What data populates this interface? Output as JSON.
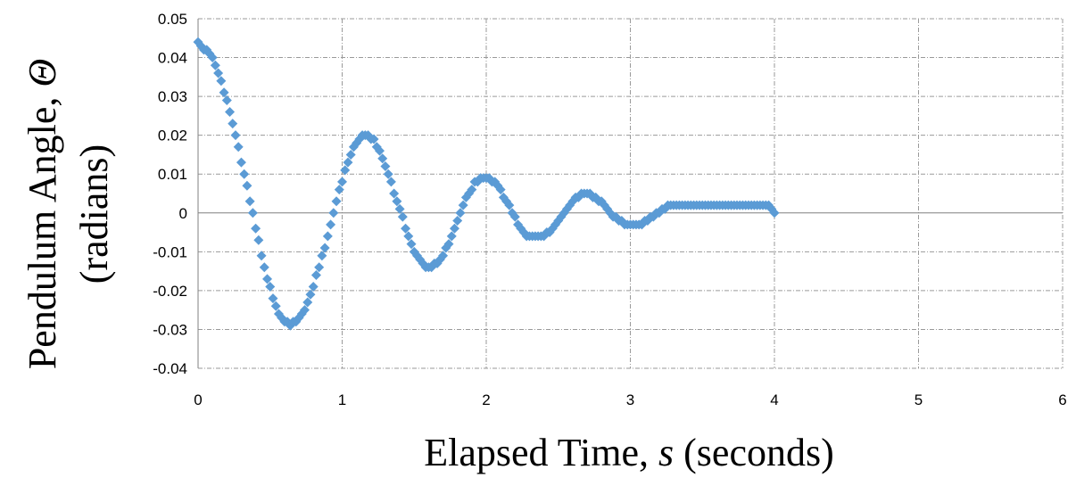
{
  "chart_data": {
    "type": "scatter",
    "xlabel": "Elapsed Time, s (seconds)",
    "xlabel_parts": {
      "before": "Elapsed Time, ",
      "var": "s",
      "after": " (seconds)"
    },
    "ylabel": "Pendulum Angle, Θ (radians)",
    "ylabel_parts": {
      "line1_before": "Pendulum Angle, ",
      "line1_var": "Θ",
      "line2": "(radians)"
    },
    "xlim": [
      0,
      6
    ],
    "ylim": [
      -0.04,
      0.05
    ],
    "x_ticks": [
      "0",
      "1",
      "2",
      "3",
      "4",
      "5",
      "6"
    ],
    "y_ticks": [
      "0.05",
      "0.04",
      "0.03",
      "0.02",
      "0.01",
      "0",
      "-0.01",
      "-0.02",
      "-0.03",
      "-0.04"
    ],
    "grid": true,
    "marker": "diamond",
    "marker_color": "#5b9bd5",
    "series": [
      {
        "points": [
          [
            0.0,
            0.044
          ],
          [
            0.02,
            0.043
          ],
          [
            0.04,
            0.042
          ],
          [
            0.06,
            0.042
          ],
          [
            0.08,
            0.041
          ],
          [
            0.1,
            0.04
          ],
          [
            0.12,
            0.038
          ],
          [
            0.14,
            0.036
          ],
          [
            0.16,
            0.034
          ],
          [
            0.18,
            0.031
          ],
          [
            0.2,
            0.029
          ],
          [
            0.22,
            0.026
          ],
          [
            0.24,
            0.023
          ],
          [
            0.26,
            0.02
          ],
          [
            0.28,
            0.017
          ],
          [
            0.3,
            0.013
          ],
          [
            0.32,
            0.01
          ],
          [
            0.34,
            0.007
          ],
          [
            0.36,
            0.003
          ],
          [
            0.38,
            0.0
          ],
          [
            0.4,
            -0.004
          ],
          [
            0.42,
            -0.007
          ],
          [
            0.44,
            -0.011
          ],
          [
            0.46,
            -0.014
          ],
          [
            0.48,
            -0.017
          ],
          [
            0.5,
            -0.019
          ],
          [
            0.52,
            -0.022
          ],
          [
            0.54,
            -0.024
          ],
          [
            0.56,
            -0.026
          ],
          [
            0.58,
            -0.027
          ],
          [
            0.6,
            -0.028
          ],
          [
            0.62,
            -0.028
          ],
          [
            0.64,
            -0.029
          ],
          [
            0.66,
            -0.028
          ],
          [
            0.68,
            -0.028
          ],
          [
            0.7,
            -0.027
          ],
          [
            0.72,
            -0.026
          ],
          [
            0.74,
            -0.025
          ],
          [
            0.76,
            -0.023
          ],
          [
            0.78,
            -0.021
          ],
          [
            0.8,
            -0.019
          ],
          [
            0.82,
            -0.016
          ],
          [
            0.84,
            -0.014
          ],
          [
            0.86,
            -0.011
          ],
          [
            0.88,
            -0.009
          ],
          [
            0.9,
            -0.006
          ],
          [
            0.92,
            -0.003
          ],
          [
            0.94,
            0.0
          ],
          [
            0.96,
            0.003
          ],
          [
            0.98,
            0.006
          ],
          [
            1.0,
            0.008
          ],
          [
            1.02,
            0.011
          ],
          [
            1.04,
            0.013
          ],
          [
            1.06,
            0.015
          ],
          [
            1.08,
            0.017
          ],
          [
            1.1,
            0.018
          ],
          [
            1.12,
            0.019
          ],
          [
            1.14,
            0.02
          ],
          [
            1.16,
            0.02
          ],
          [
            1.18,
            0.02
          ],
          [
            1.2,
            0.019
          ],
          [
            1.22,
            0.019
          ],
          [
            1.24,
            0.017
          ],
          [
            1.26,
            0.016
          ],
          [
            1.28,
            0.014
          ],
          [
            1.3,
            0.012
          ],
          [
            1.32,
            0.01
          ],
          [
            1.34,
            0.008
          ],
          [
            1.36,
            0.005
          ],
          [
            1.38,
            0.003
          ],
          [
            1.4,
            0.001
          ],
          [
            1.42,
            -0.001
          ],
          [
            1.44,
            -0.004
          ],
          [
            1.46,
            -0.006
          ],
          [
            1.48,
            -0.008
          ],
          [
            1.5,
            -0.01
          ],
          [
            1.52,
            -0.011
          ],
          [
            1.54,
            -0.012
          ],
          [
            1.56,
            -0.013
          ],
          [
            1.58,
            -0.014
          ],
          [
            1.6,
            -0.014
          ],
          [
            1.62,
            -0.014
          ],
          [
            1.64,
            -0.013
          ],
          [
            1.66,
            -0.013
          ],
          [
            1.68,
            -0.012
          ],
          [
            1.7,
            -0.011
          ],
          [
            1.72,
            -0.009
          ],
          [
            1.74,
            -0.008
          ],
          [
            1.76,
            -0.006
          ],
          [
            1.78,
            -0.004
          ],
          [
            1.8,
            -0.002
          ],
          [
            1.82,
            0.0
          ],
          [
            1.84,
            0.002
          ],
          [
            1.86,
            0.004
          ],
          [
            1.88,
            0.005
          ],
          [
            1.9,
            0.006
          ],
          [
            1.92,
            0.008
          ],
          [
            1.94,
            0.008
          ],
          [
            1.96,
            0.009
          ],
          [
            1.98,
            0.009
          ],
          [
            2.0,
            0.009
          ],
          [
            2.02,
            0.009
          ],
          [
            2.04,
            0.008
          ],
          [
            2.06,
            0.008
          ],
          [
            2.08,
            0.007
          ],
          [
            2.1,
            0.006
          ],
          [
            2.12,
            0.004
          ],
          [
            2.14,
            0.003
          ],
          [
            2.16,
            0.002
          ],
          [
            2.18,
            0.0
          ],
          [
            2.2,
            -0.001
          ],
          [
            2.22,
            -0.003
          ],
          [
            2.24,
            -0.004
          ],
          [
            2.26,
            -0.005
          ],
          [
            2.28,
            -0.006
          ],
          [
            2.3,
            -0.006
          ],
          [
            2.32,
            -0.006
          ],
          [
            2.34,
            -0.006
          ],
          [
            2.36,
            -0.006
          ],
          [
            2.38,
            -0.006
          ],
          [
            2.4,
            -0.006
          ],
          [
            2.42,
            -0.005
          ],
          [
            2.44,
            -0.005
          ],
          [
            2.46,
            -0.004
          ],
          [
            2.48,
            -0.003
          ],
          [
            2.5,
            -0.002
          ],
          [
            2.52,
            -0.001
          ],
          [
            2.54,
            0.0
          ],
          [
            2.56,
            0.001
          ],
          [
            2.58,
            0.002
          ],
          [
            2.6,
            0.003
          ],
          [
            2.62,
            0.004
          ],
          [
            2.64,
            0.004
          ],
          [
            2.66,
            0.005
          ],
          [
            2.68,
            0.005
          ],
          [
            2.7,
            0.005
          ],
          [
            2.72,
            0.005
          ],
          [
            2.74,
            0.004
          ],
          [
            2.76,
            0.004
          ],
          [
            2.78,
            0.003
          ],
          [
            2.8,
            0.003
          ],
          [
            2.82,
            0.002
          ],
          [
            2.84,
            0.001
          ],
          [
            2.86,
            0.0
          ],
          [
            2.88,
            -0.001
          ],
          [
            2.9,
            -0.001
          ],
          [
            2.92,
            -0.002
          ],
          [
            2.94,
            -0.002
          ],
          [
            2.96,
            -0.003
          ],
          [
            2.98,
            -0.003
          ],
          [
            3.0,
            -0.003
          ],
          [
            3.02,
            -0.003
          ],
          [
            3.04,
            -0.003
          ],
          [
            3.06,
            -0.003
          ],
          [
            3.08,
            -0.003
          ],
          [
            3.1,
            -0.002
          ],
          [
            3.12,
            -0.002
          ],
          [
            3.14,
            -0.001
          ],
          [
            3.16,
            -0.001
          ],
          [
            3.18,
            0.0
          ],
          [
            3.2,
            0.0
          ],
          [
            3.22,
            0.001
          ],
          [
            3.24,
            0.001
          ],
          [
            3.26,
            0.002
          ],
          [
            3.28,
            0.002
          ],
          [
            3.3,
            0.002
          ],
          [
            3.32,
            0.002
          ],
          [
            3.34,
            0.002
          ],
          [
            3.36,
            0.002
          ],
          [
            3.38,
            0.002
          ],
          [
            3.4,
            0.002
          ],
          [
            3.42,
            0.002
          ],
          [
            3.44,
            0.002
          ],
          [
            3.46,
            0.002
          ],
          [
            3.48,
            0.002
          ],
          [
            3.5,
            0.002
          ],
          [
            3.52,
            0.002
          ],
          [
            3.54,
            0.002
          ],
          [
            3.56,
            0.002
          ],
          [
            3.58,
            0.002
          ],
          [
            3.6,
            0.002
          ],
          [
            3.62,
            0.002
          ],
          [
            3.64,
            0.002
          ],
          [
            3.66,
            0.002
          ],
          [
            3.68,
            0.002
          ],
          [
            3.7,
            0.002
          ],
          [
            3.72,
            0.002
          ],
          [
            3.74,
            0.002
          ],
          [
            3.76,
            0.002
          ],
          [
            3.78,
            0.002
          ],
          [
            3.8,
            0.002
          ],
          [
            3.82,
            0.002
          ],
          [
            3.84,
            0.002
          ],
          [
            3.86,
            0.002
          ],
          [
            3.88,
            0.002
          ],
          [
            3.9,
            0.002
          ],
          [
            3.92,
            0.002
          ],
          [
            3.94,
            0.002
          ],
          [
            3.96,
            0.002
          ],
          [
            3.98,
            0.001
          ],
          [
            4.0,
            0.0
          ]
        ]
      }
    ]
  }
}
